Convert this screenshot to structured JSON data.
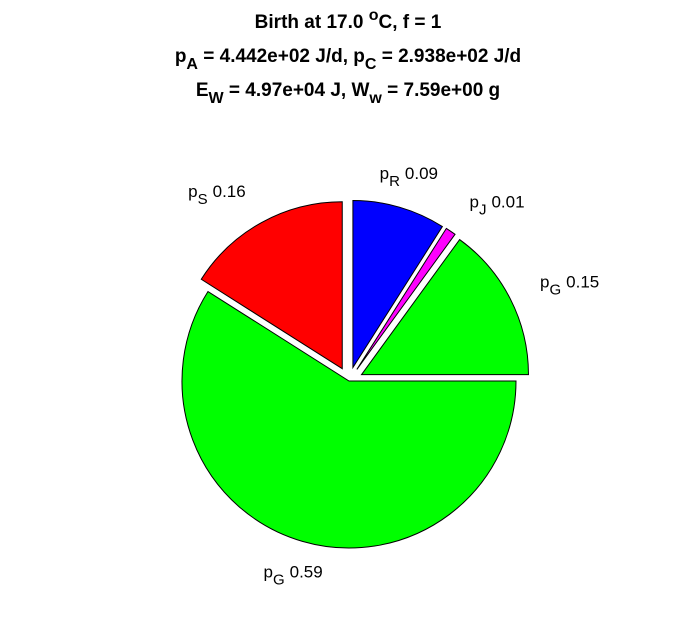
{
  "chart_data": {
    "type": "pie",
    "title": [
      [
        {
          "text": "Birth at 17.0 "
        },
        {
          "text": "o",
          "pos": "sup"
        },
        {
          "text": "C, f = 1"
        }
      ],
      [
        {
          "text": "p"
        },
        {
          "text": "A",
          "pos": "sub"
        },
        {
          "text": " = 4.442e+02 J/d, p"
        },
        {
          "text": "C",
          "pos": "sub"
        },
        {
          "text": " = 2.938e+02 J/d"
        }
      ],
      [
        {
          "text": "E"
        },
        {
          "text": "W",
          "pos": "sub"
        },
        {
          "text": " = 4.97e+04 J, W"
        },
        {
          "text": "w",
          "pos": "sub"
        },
        {
          "text": " = 7.59e+00 g"
        }
      ]
    ],
    "categories": [
      {
        "text": "p",
        "subscript": "R"
      },
      {
        "text": "p",
        "subscript": "J"
      },
      {
        "text": "p",
        "subscript": "G"
      },
      {
        "text": "p",
        "subscript": "G"
      },
      {
        "text": "p",
        "subscript": "S"
      }
    ],
    "values": [
      0.09,
      0.01,
      0.15,
      0.59,
      0.16
    ],
    "colors": [
      "#0000ff",
      "#ff00ff",
      "#00ff00",
      "#00ff00",
      "#ff0000"
    ],
    "explode": [
      true,
      true,
      true,
      false,
      true
    ]
  }
}
